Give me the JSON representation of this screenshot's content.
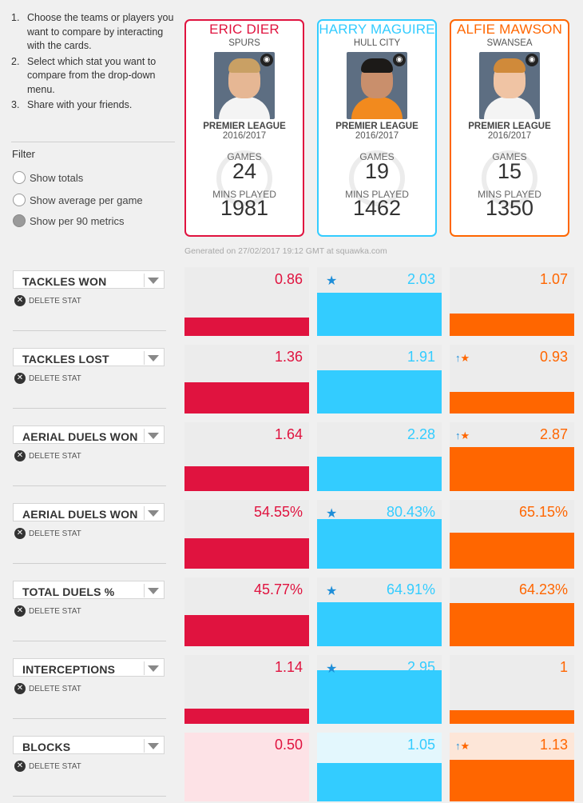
{
  "instructions": [
    {
      "num": "1.",
      "text": "Choose the teams or players you want to compare by interacting with the cards."
    },
    {
      "num": "2.",
      "text": "Select which stat you want to compare from the drop-down menu."
    },
    {
      "num": "3.",
      "text": "Share with your friends."
    }
  ],
  "filter": {
    "title": "Filter",
    "options": [
      {
        "label": "Show totals",
        "selected": false
      },
      {
        "label": "Show average per game",
        "selected": false
      },
      {
        "label": "Show per 90 metrics",
        "selected": true
      }
    ]
  },
  "players": [
    {
      "name": "ERIC DIER",
      "team": "SPURS",
      "league": "PREMIER LEAGUE",
      "season": "2016/2017",
      "games_label": "GAMES",
      "games": "24",
      "mins_label": "MINS PLAYED",
      "mins": "1981",
      "color": "#e0133f",
      "light": "#fde2e6",
      "badge_icon": "club-badge-icon"
    },
    {
      "name": "HARRY MAGUIRE",
      "team": "HULL CITY",
      "league": "PREMIER LEAGUE",
      "season": "2016/2017",
      "games_label": "GAMES",
      "games": "19",
      "mins_label": "MINS PLAYED",
      "mins": "1462",
      "color": "#33ccff",
      "light": "#e3f7fd",
      "badge_icon": "club-badge-icon"
    },
    {
      "name": "ALFIE MAWSON",
      "team": "SWANSEA",
      "league": "PREMIER LEAGUE",
      "season": "2016/2017",
      "games_label": "GAMES",
      "games": "15",
      "mins_label": "MINS PLAYED",
      "mins": "1350",
      "color": "#ff6600",
      "light": "#fde6d8",
      "badge_icon": "club-badge-icon"
    }
  ],
  "generated_text": "Generated on 27/02/2017 19:12 GMT at squawka.com",
  "delete_label": "DELETE STAT",
  "stats": [
    {
      "label": "TACKLES WON",
      "values": [
        "0.86",
        "2.03",
        "1.07"
      ],
      "levels": [
        0.27,
        0.63,
        0.33
      ],
      "best": 1,
      "marker": 1
    },
    {
      "label": "TACKLES LOST",
      "values": [
        "1.36",
        "1.91",
        "0.93"
      ],
      "levels": [
        0.45,
        0.63,
        0.31
      ],
      "best": -1,
      "marker": 2
    },
    {
      "label": "AERIAL DUELS WON",
      "values": [
        "1.64",
        "2.28",
        "2.87"
      ],
      "levels": [
        0.36,
        0.5,
        0.64
      ],
      "best": -1,
      "marker": 2
    },
    {
      "label": "AERIAL DUELS WON",
      "values": [
        "54.55%",
        "80.43%",
        "65.15%"
      ],
      "levels": [
        0.44,
        0.72,
        0.52
      ],
      "best": 1,
      "marker": 1
    },
    {
      "label": "TOTAL DUELS %",
      "values": [
        "45.77%",
        "64.91%",
        "64.23%"
      ],
      "levels": [
        0.45,
        0.64,
        0.63
      ],
      "best": 1,
      "marker": 1
    },
    {
      "label": "INTERCEPTIONS",
      "values": [
        "1.14",
        "2.95",
        "1"
      ],
      "levels": [
        0.22,
        0.78,
        0.2
      ],
      "best": 1,
      "marker": 1
    },
    {
      "label": "BLOCKS",
      "values": [
        "0.50",
        "1.05",
        "1.13"
      ],
      "levels": [
        0.0,
        0.56,
        0.6
      ],
      "best": -1,
      "marker": 2
    }
  ]
}
